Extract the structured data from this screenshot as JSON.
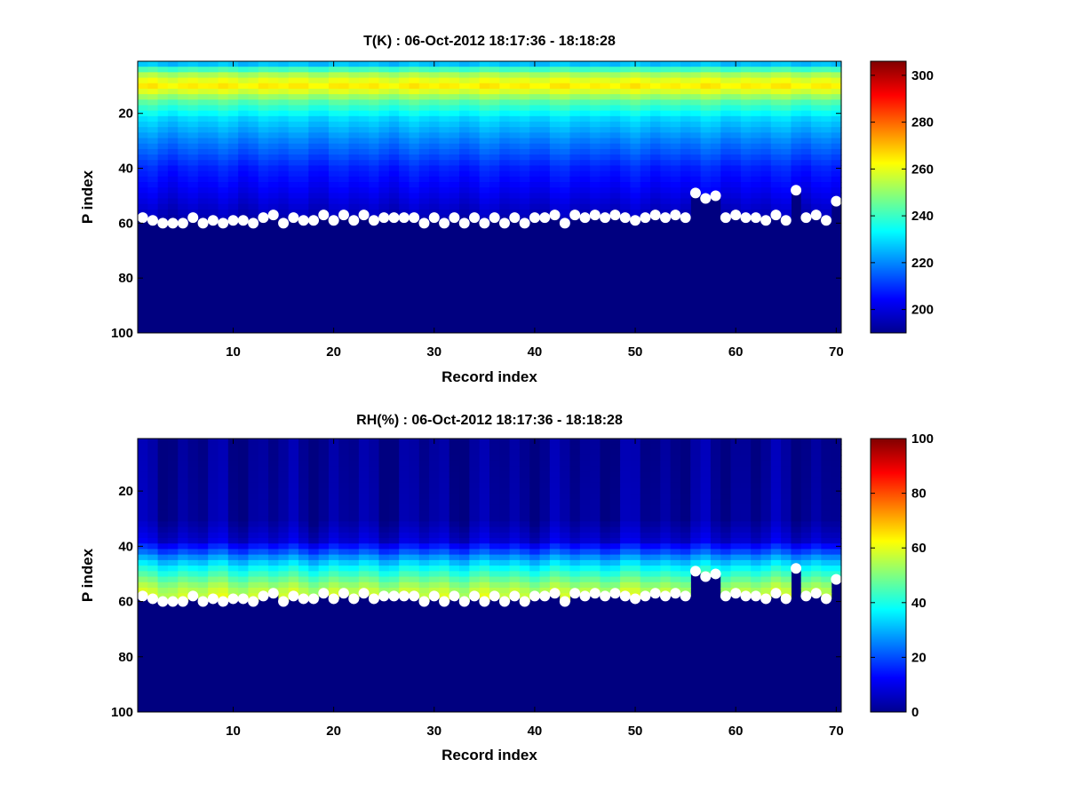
{
  "chart_data": [
    {
      "type": "heatmap",
      "title": "T(K) : 06-Oct-2012 18:17:36 - 18:18:28",
      "xlabel": "Record index",
      "ylabel": "P index",
      "xlim": [
        0.5,
        70.5
      ],
      "ylim": [
        1,
        100
      ],
      "y_direction": "reversed",
      "x_ticks": [
        "10",
        "20",
        "30",
        "40",
        "50",
        "60",
        "70"
      ],
      "y_ticks": [
        "20",
        "40",
        "60",
        "80",
        "100"
      ],
      "colorbar": {
        "colormap": "jet",
        "range": [
          190,
          306
        ],
        "ticks": [
          "200",
          "220",
          "240",
          "260",
          "280",
          "300"
        ]
      },
      "band_profile": {
        "description": "approximate temperature (K) by P index, above surface level",
        "p_index": [
          1,
          3,
          6,
          9,
          10,
          12,
          16,
          22,
          30,
          40,
          48,
          55,
          60
        ],
        "value": [
          218,
          235,
          253,
          263,
          264,
          258,
          243,
          229,
          219,
          208,
          203,
          198,
          195
        ]
      },
      "below_surface_value": 190,
      "overlay_markers": {
        "style": "white filled circles",
        "x": [
          1,
          2,
          3,
          4,
          5,
          6,
          7,
          8,
          9,
          10,
          11,
          12,
          13,
          14,
          15,
          16,
          17,
          18,
          19,
          20,
          21,
          22,
          23,
          24,
          25,
          26,
          27,
          28,
          29,
          30,
          31,
          32,
          33,
          34,
          35,
          36,
          37,
          38,
          39,
          40,
          41,
          42,
          43,
          44,
          45,
          46,
          47,
          48,
          49,
          50,
          51,
          52,
          53,
          54,
          55,
          56,
          57,
          58,
          59,
          60,
          61,
          62,
          63,
          64,
          65,
          66,
          67,
          68,
          69,
          70
        ],
        "y": [
          58,
          59,
          60,
          60,
          60,
          58,
          60,
          59,
          60,
          59,
          59,
          60,
          58,
          57,
          60,
          58,
          59,
          59,
          57,
          59,
          57,
          59,
          57,
          59,
          58,
          58,
          58,
          58,
          60,
          58,
          60,
          58,
          60,
          58,
          60,
          58,
          60,
          58,
          60,
          58,
          58,
          57,
          60,
          57,
          58,
          57,
          58,
          57,
          58,
          59,
          58,
          57,
          58,
          57,
          58,
          49,
          51,
          50,
          58,
          57,
          58,
          58,
          59,
          57,
          59,
          48,
          58,
          57,
          59,
          52
        ]
      }
    },
    {
      "type": "heatmap",
      "title": "RH(%) : 06-Oct-2012 18:17:36 - 18:18:28",
      "xlabel": "Record index",
      "ylabel": "P index",
      "xlim": [
        0.5,
        70.5
      ],
      "ylim": [
        1,
        100
      ],
      "y_direction": "reversed",
      "x_ticks": [
        "10",
        "20",
        "30",
        "40",
        "50",
        "60",
        "70"
      ],
      "y_ticks": [
        "20",
        "40",
        "60",
        "80",
        "100"
      ],
      "colorbar": {
        "colormap": "jet",
        "range": [
          0,
          100
        ],
        "ticks": [
          "0",
          "20",
          "40",
          "60",
          "80",
          "100"
        ]
      },
      "band_profile": {
        "description": "approximate relative humidity (%) by P index, above surface level",
        "p_index": [
          1,
          30,
          38,
          42,
          45,
          48,
          51,
          54,
          57,
          60
        ],
        "value": [
          2,
          3,
          8,
          20,
          30,
          38,
          45,
          52,
          57,
          58
        ]
      },
      "below_surface_value": 0,
      "overlay_markers": {
        "style": "white filled circles",
        "x": [
          1,
          2,
          3,
          4,
          5,
          6,
          7,
          8,
          9,
          10,
          11,
          12,
          13,
          14,
          15,
          16,
          17,
          18,
          19,
          20,
          21,
          22,
          23,
          24,
          25,
          26,
          27,
          28,
          29,
          30,
          31,
          32,
          33,
          34,
          35,
          36,
          37,
          38,
          39,
          40,
          41,
          42,
          43,
          44,
          45,
          46,
          47,
          48,
          49,
          50,
          51,
          52,
          53,
          54,
          55,
          56,
          57,
          58,
          59,
          60,
          61,
          62,
          63,
          64,
          65,
          66,
          67,
          68,
          69,
          70
        ],
        "y": [
          58,
          59,
          60,
          60,
          60,
          58,
          60,
          59,
          60,
          59,
          59,
          60,
          58,
          57,
          60,
          58,
          59,
          59,
          57,
          59,
          57,
          59,
          57,
          59,
          58,
          58,
          58,
          58,
          60,
          58,
          60,
          58,
          60,
          58,
          60,
          58,
          60,
          58,
          60,
          58,
          58,
          57,
          60,
          57,
          58,
          57,
          58,
          57,
          58,
          59,
          58,
          57,
          58,
          57,
          58,
          49,
          51,
          50,
          58,
          57,
          58,
          58,
          59,
          57,
          59,
          48,
          58,
          57,
          59,
          52
        ]
      }
    }
  ]
}
